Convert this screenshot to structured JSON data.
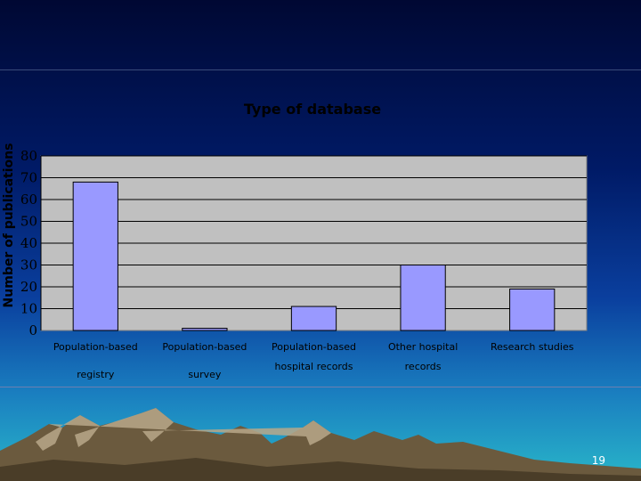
{
  "slide": {
    "page_number": "19",
    "background_colors": [
      "#000833",
      "#0a3f9e",
      "#29b6c9"
    ]
  },
  "chart_data": {
    "type": "bar",
    "title": "Type of database",
    "xlabel": "",
    "ylabel": "Number of publications",
    "ylim": [
      0,
      80
    ],
    "yticks": [
      0,
      10,
      20,
      30,
      40,
      50,
      60,
      70,
      80
    ],
    "grid": true,
    "categories": [
      {
        "line1": "Population-based",
        "line2": "registry"
      },
      {
        "line1": "Population-based",
        "line2": "survey"
      },
      {
        "line1": "Population-based",
        "line2": "hospital records"
      },
      {
        "line1": "Other hospital",
        "line2": "records"
      },
      {
        "line1": "Research studies",
        "line2": ""
      }
    ],
    "values": [
      68,
      1,
      11,
      30,
      19
    ],
    "colors": {
      "bar_fill": "#9999ff",
      "plot_area": "#c0c0c0",
      "gridline": "#000000"
    }
  }
}
